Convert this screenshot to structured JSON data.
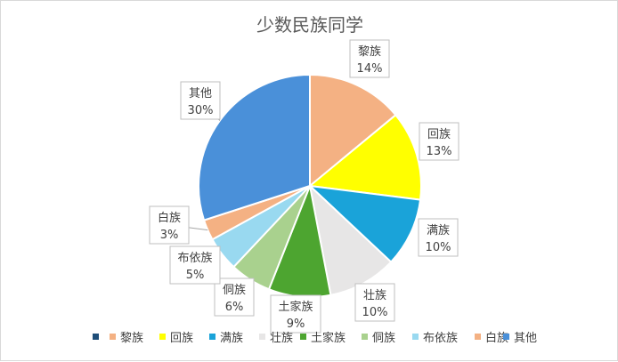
{
  "chart_data": {
    "type": "pie",
    "title": "少数民族同学",
    "categories": [
      "",
      "黎族",
      "回族",
      "满族",
      "壮族",
      "土家族",
      "侗族",
      "布依族",
      "白族",
      "其他"
    ],
    "values": [
      0,
      14,
      13,
      10,
      10,
      9,
      6,
      5,
      3,
      30
    ],
    "data_labels": [
      "",
      "14%",
      "13%",
      "10%",
      "10%",
      "9%",
      "6%",
      "5%",
      "3%",
      "30%"
    ],
    "colors": [
      "#1f4e79",
      "#f4b183",
      "#ffff00",
      "#1aa3d9",
      "#e7e6e6",
      "#4da530",
      "#a9d18e",
      "#99d9f0",
      "#f4b183",
      "#4a90d9"
    ],
    "legend_position": "bottom"
  }
}
